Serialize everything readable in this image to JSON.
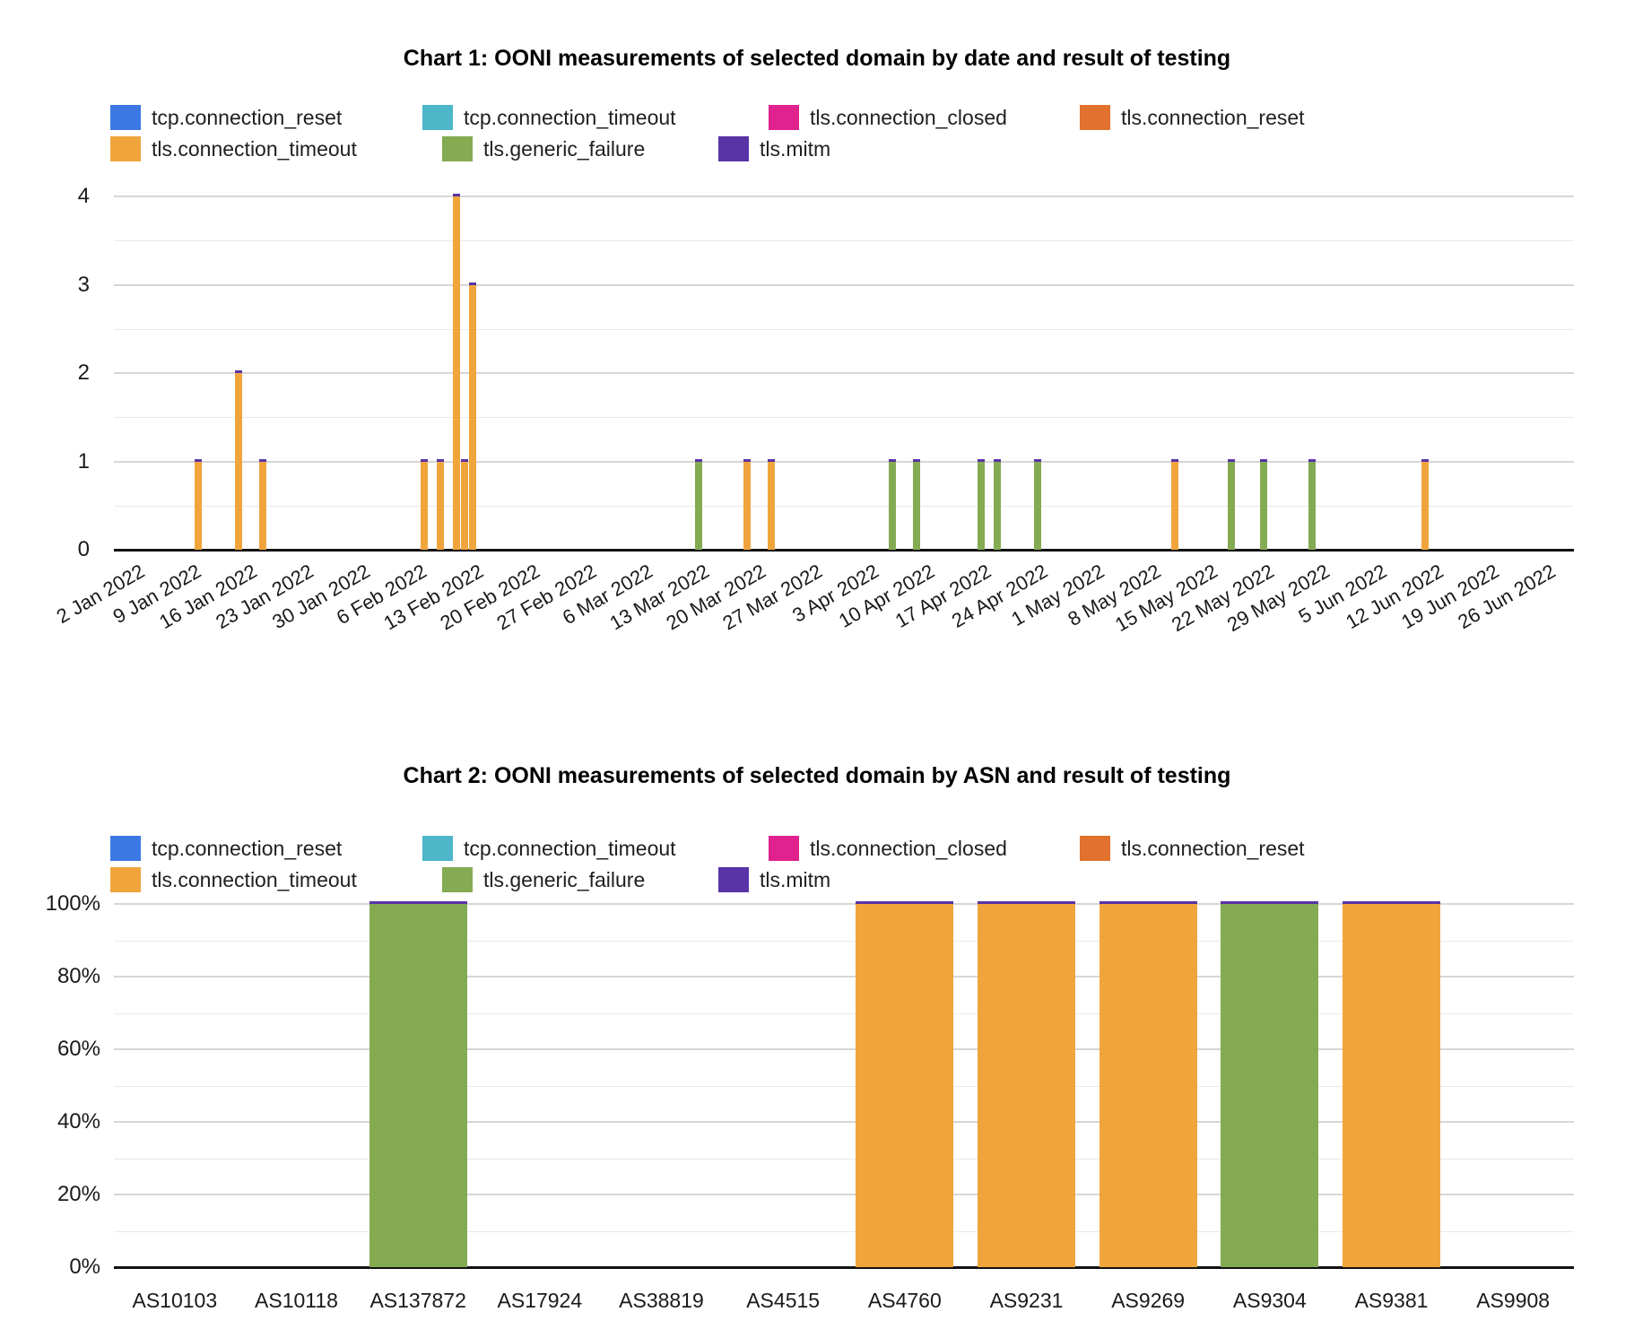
{
  "page": {
    "background": "#ffffff"
  },
  "legend": {
    "items": [
      {
        "label": "tcp.connection_reset",
        "color": "#3C78E3"
      },
      {
        "label": "tcp.connection_timeout",
        "color": "#4DB6C9"
      },
      {
        "label": "tls.connection_closed",
        "color": "#E0218E"
      },
      {
        "label": "tls.connection_reset",
        "color": "#E0722D"
      },
      {
        "label": "tls.connection_timeout",
        "color": "#F0A53C"
      },
      {
        "label": "tls.generic_failure",
        "color": "#85AB52"
      },
      {
        "label": "tls.mitm",
        "color": "#5834A6"
      }
    ]
  },
  "chart_data": [
    {
      "type": "bar",
      "stacked": true,
      "title": "Chart 1: OONI measurements of selected domain by date and result of testing",
      "xlabel": "",
      "ylabel": "",
      "ylim": [
        0,
        4
      ],
      "yticks": [
        0,
        1,
        2,
        3,
        4
      ],
      "grid": true,
      "legend_position": "top-left",
      "x_domain": [
        "2022-01-01",
        "2022-07-01"
      ],
      "x_tick_labels": [
        "2 Jan 2022",
        "9 Jan 2022",
        "16 Jan 2022",
        "23 Jan 2022",
        "30 Jan 2022",
        "6 Feb 2022",
        "13 Feb 2022",
        "20 Feb 2022",
        "27 Feb 2022",
        "6 Mar 2022",
        "13 Mar 2022",
        "20 Mar 2022",
        "27 Mar 2022",
        "3 Apr 2022",
        "10 Apr 2022",
        "17 Apr 2022",
        "24 Apr 2022",
        "1 May 2022",
        "8 May 2022",
        "15 May 2022",
        "22 May 2022",
        "29 May 2022",
        "5 Jun 2022",
        "12 Jun 2022",
        "19 Jun 2022",
        "26 Jun 2022"
      ],
      "bar_top_cap_series": "tls.mitm",
      "bars": [
        {
          "date": "2022-01-11",
          "series": "tls.connection_timeout",
          "value": 1
        },
        {
          "date": "2022-01-16",
          "series": "tls.connection_timeout",
          "value": 2
        },
        {
          "date": "2022-01-19",
          "series": "tls.connection_timeout",
          "value": 1
        },
        {
          "date": "2022-02-08",
          "series": "tls.connection_timeout",
          "value": 1
        },
        {
          "date": "2022-02-10",
          "series": "tls.connection_timeout",
          "value": 1
        },
        {
          "date": "2022-02-12",
          "series": "tls.connection_timeout",
          "value": 4
        },
        {
          "date": "2022-02-13",
          "series": "tls.connection_timeout",
          "value": 1
        },
        {
          "date": "2022-02-14",
          "series": "tls.connection_timeout",
          "value": 3
        },
        {
          "date": "2022-03-14",
          "series": "tls.generic_failure",
          "value": 1
        },
        {
          "date": "2022-03-20",
          "series": "tls.connection_timeout",
          "value": 1
        },
        {
          "date": "2022-03-23",
          "series": "tls.connection_timeout",
          "value": 1
        },
        {
          "date": "2022-04-07",
          "series": "tls.generic_failure",
          "value": 1
        },
        {
          "date": "2022-04-10",
          "series": "tls.generic_failure",
          "value": 1
        },
        {
          "date": "2022-04-18",
          "series": "tls.generic_failure",
          "value": 1
        },
        {
          "date": "2022-04-20",
          "series": "tls.generic_failure",
          "value": 1
        },
        {
          "date": "2022-04-25",
          "series": "tls.generic_failure",
          "value": 1
        },
        {
          "date": "2022-05-12",
          "series": "tls.connection_timeout",
          "value": 1
        },
        {
          "date": "2022-05-19",
          "series": "tls.generic_failure",
          "value": 1
        },
        {
          "date": "2022-05-23",
          "series": "tls.generic_failure",
          "value": 1
        },
        {
          "date": "2022-05-29",
          "series": "tls.generic_failure",
          "value": 1
        },
        {
          "date": "2022-06-12",
          "series": "tls.connection_timeout",
          "value": 1
        }
      ]
    },
    {
      "type": "bar",
      "stacked": "percent",
      "title": "Chart 2: OONI measurements of selected domain by ASN and result of testing",
      "xlabel": "",
      "ylabel": "",
      "grid": true,
      "legend_position": "top-left",
      "yticks_percent": [
        "0%",
        "20%",
        "40%",
        "60%",
        "80%",
        "100%"
      ],
      "categories": [
        "AS10103",
        "AS10118",
        "AS137872",
        "AS17924",
        "AS38819",
        "AS4515",
        "AS4760",
        "AS9231",
        "AS9269",
        "AS9304",
        "AS9381",
        "AS9908"
      ],
      "bar_top_cap_series": "tls.mitm",
      "series": [
        {
          "name": "tls.connection_timeout",
          "values": [
            0,
            0,
            0,
            0,
            0,
            0,
            100,
            100,
            100,
            0,
            100,
            0
          ]
        },
        {
          "name": "tls.generic_failure",
          "values": [
            0,
            0,
            100,
            0,
            0,
            0,
            0,
            0,
            0,
            100,
            0,
            0
          ]
        }
      ]
    }
  ]
}
